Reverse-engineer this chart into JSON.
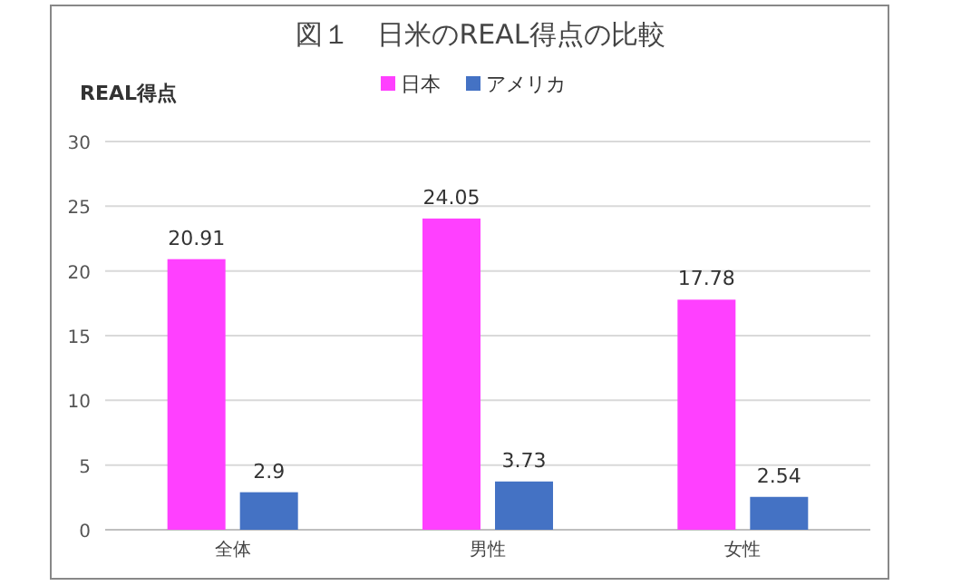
{
  "chart_data": {
    "type": "bar",
    "title": "図１　日米のREAL得点の比較",
    "ylabel": "REAL得点",
    "categories": [
      "全体",
      "男性",
      "女性"
    ],
    "series": [
      {
        "name": "日本",
        "color": "#ff40ff",
        "values": [
          20.91,
          24.05,
          17.78
        ]
      },
      {
        "name": "アメリカ",
        "color": "#4472c4",
        "values": [
          2.9,
          3.73,
          2.54
        ]
      }
    ],
    "ylim": [
      0,
      30
    ],
    "yticks": [
      0,
      5,
      10,
      15,
      20,
      25,
      30
    ],
    "grid": "y",
    "legend": "top",
    "data_labels": true
  }
}
